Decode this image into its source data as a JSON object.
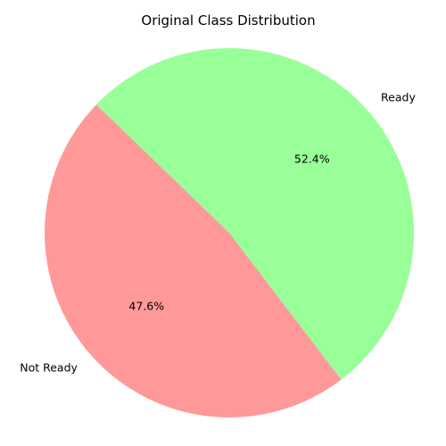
{
  "chart_data": {
    "type": "pie",
    "title": "Original Class Distribution",
    "slices": [
      {
        "label": "Not Ready",
        "value": 47.6,
        "pct_label": "47.6%",
        "color": "#ff9999"
      },
      {
        "label": "Ready",
        "value": 52.4,
        "pct_label": "52.4%",
        "color": "#99ff99"
      }
    ],
    "start_angle_deg": 136,
    "direction": "counterclockwise",
    "legend": "none"
  }
}
